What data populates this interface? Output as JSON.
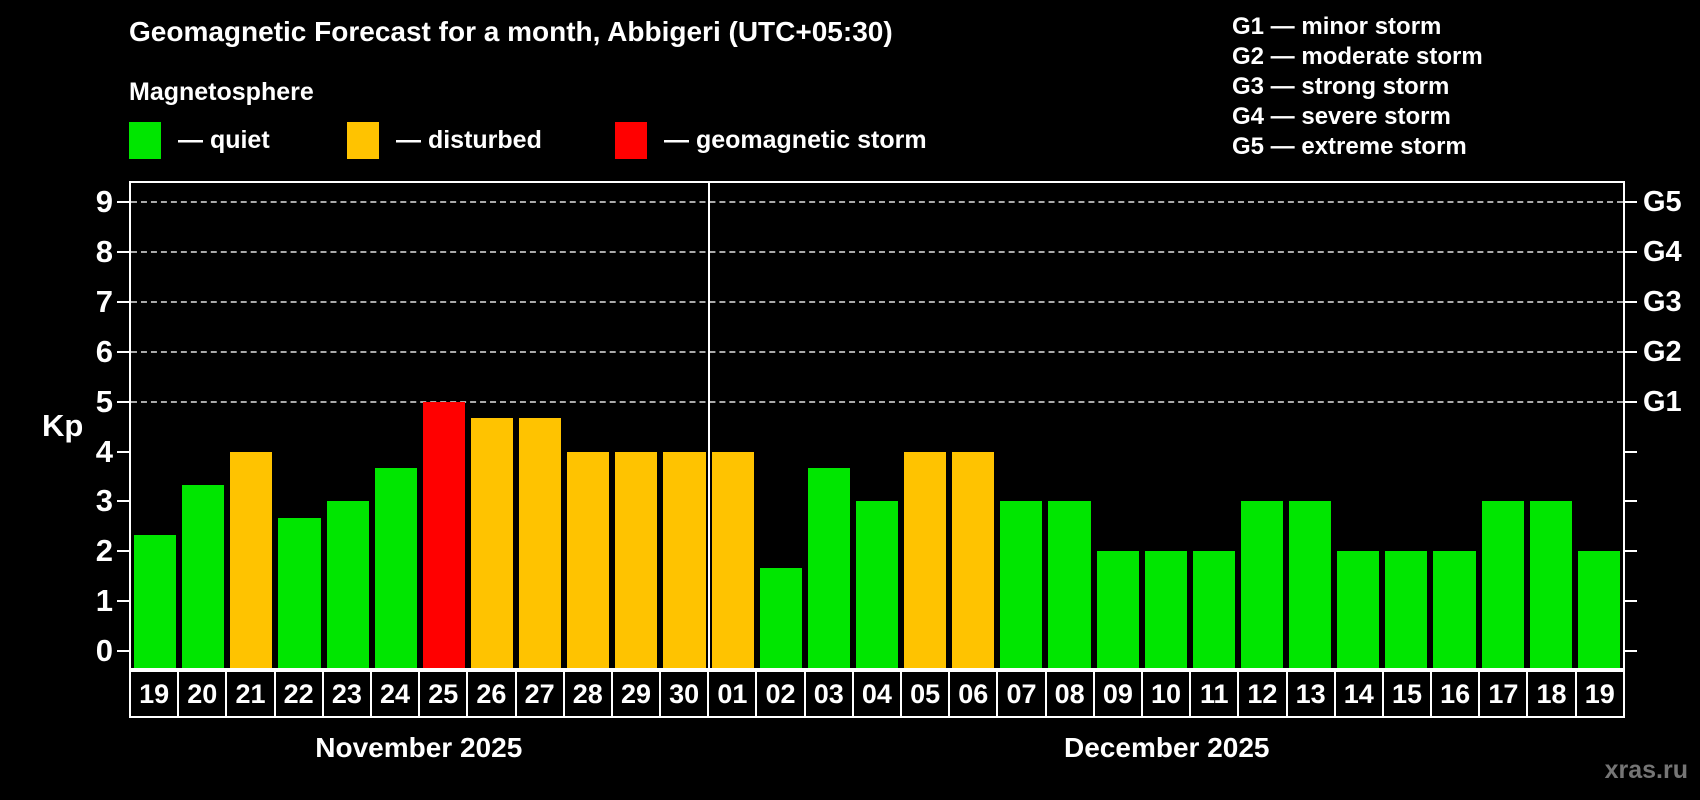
{
  "title": "Geomagnetic Forecast for a month, Abbigeri (UTC+05:30)",
  "subtitle": "Magnetosphere",
  "legend": {
    "items": [
      {
        "key": "quiet",
        "label": "— quiet"
      },
      {
        "key": "disturbed",
        "label": "— disturbed"
      },
      {
        "key": "storm",
        "label": "— geomagnetic storm"
      }
    ]
  },
  "g_legend": [
    "G1 — minor storm",
    "G2 — moderate storm",
    "G3 — strong storm",
    "G4 — severe storm",
    "G5 — extreme storm"
  ],
  "watermark": "xras.ru",
  "colors": {
    "quiet": "#00e600",
    "disturbed": "#ffc300",
    "storm": "#ff0000",
    "axis": "#ffffff",
    "grid": "#a9a9a9",
    "background": "#000000",
    "watermark": "#757575"
  },
  "chart_data": {
    "type": "bar",
    "ylabel": "Kp",
    "ylim": [
      -0.35,
      9.4
    ],
    "yticks": [
      0,
      1,
      2,
      3,
      4,
      5,
      6,
      7,
      8,
      9
    ],
    "gridlines_at": [
      5,
      6,
      7,
      8,
      9
    ],
    "grid": "dashed-on-storm-levels",
    "legend_position": "top",
    "right_axis": [
      {
        "kp": 5,
        "label": "G1"
      },
      {
        "kp": 6,
        "label": "G2"
      },
      {
        "kp": 7,
        "label": "G3"
      },
      {
        "kp": 8,
        "label": "G4"
      },
      {
        "kp": 9,
        "label": "G5"
      }
    ],
    "months": [
      {
        "label": "November 2025",
        "days": 12
      },
      {
        "label": "December 2025",
        "days": 19
      }
    ],
    "bars": [
      {
        "month": 0,
        "day": "19",
        "value": 2.33,
        "status": "quiet"
      },
      {
        "month": 0,
        "day": "20",
        "value": 3.33,
        "status": "quiet"
      },
      {
        "month": 0,
        "day": "21",
        "value": 4.0,
        "status": "disturbed"
      },
      {
        "month": 0,
        "day": "22",
        "value": 2.67,
        "status": "quiet"
      },
      {
        "month": 0,
        "day": "23",
        "value": 3.0,
        "status": "quiet"
      },
      {
        "month": 0,
        "day": "24",
        "value": 3.67,
        "status": "quiet"
      },
      {
        "month": 0,
        "day": "25",
        "value": 5.0,
        "status": "storm"
      },
      {
        "month": 0,
        "day": "26",
        "value": 4.67,
        "status": "disturbed"
      },
      {
        "month": 0,
        "day": "27",
        "value": 4.67,
        "status": "disturbed"
      },
      {
        "month": 0,
        "day": "28",
        "value": 4.0,
        "status": "disturbed"
      },
      {
        "month": 0,
        "day": "29",
        "value": 4.0,
        "status": "disturbed"
      },
      {
        "month": 0,
        "day": "30",
        "value": 4.0,
        "status": "disturbed"
      },
      {
        "month": 1,
        "day": "01",
        "value": 4.0,
        "status": "disturbed"
      },
      {
        "month": 1,
        "day": "02",
        "value": 1.67,
        "status": "quiet"
      },
      {
        "month": 1,
        "day": "03",
        "value": 3.67,
        "status": "quiet"
      },
      {
        "month": 1,
        "day": "04",
        "value": 3.0,
        "status": "quiet"
      },
      {
        "month": 1,
        "day": "05",
        "value": 4.0,
        "status": "disturbed"
      },
      {
        "month": 1,
        "day": "06",
        "value": 4.0,
        "status": "disturbed"
      },
      {
        "month": 1,
        "day": "07",
        "value": 3.0,
        "status": "quiet"
      },
      {
        "month": 1,
        "day": "08",
        "value": 3.0,
        "status": "quiet"
      },
      {
        "month": 1,
        "day": "09",
        "value": 2.0,
        "status": "quiet"
      },
      {
        "month": 1,
        "day": "10",
        "value": 2.0,
        "status": "quiet"
      },
      {
        "month": 1,
        "day": "11",
        "value": 2.0,
        "status": "quiet"
      },
      {
        "month": 1,
        "day": "12",
        "value": 3.0,
        "status": "quiet"
      },
      {
        "month": 1,
        "day": "13",
        "value": 3.0,
        "status": "quiet"
      },
      {
        "month": 1,
        "day": "14",
        "value": 2.0,
        "status": "quiet"
      },
      {
        "month": 1,
        "day": "15",
        "value": 2.0,
        "status": "quiet"
      },
      {
        "month": 1,
        "day": "16",
        "value": 2.0,
        "status": "quiet"
      },
      {
        "month": 1,
        "day": "17",
        "value": 3.0,
        "status": "quiet"
      },
      {
        "month": 1,
        "day": "18",
        "value": 3.0,
        "status": "quiet"
      },
      {
        "month": 1,
        "day": "19",
        "value": 2.0,
        "status": "quiet"
      }
    ]
  }
}
